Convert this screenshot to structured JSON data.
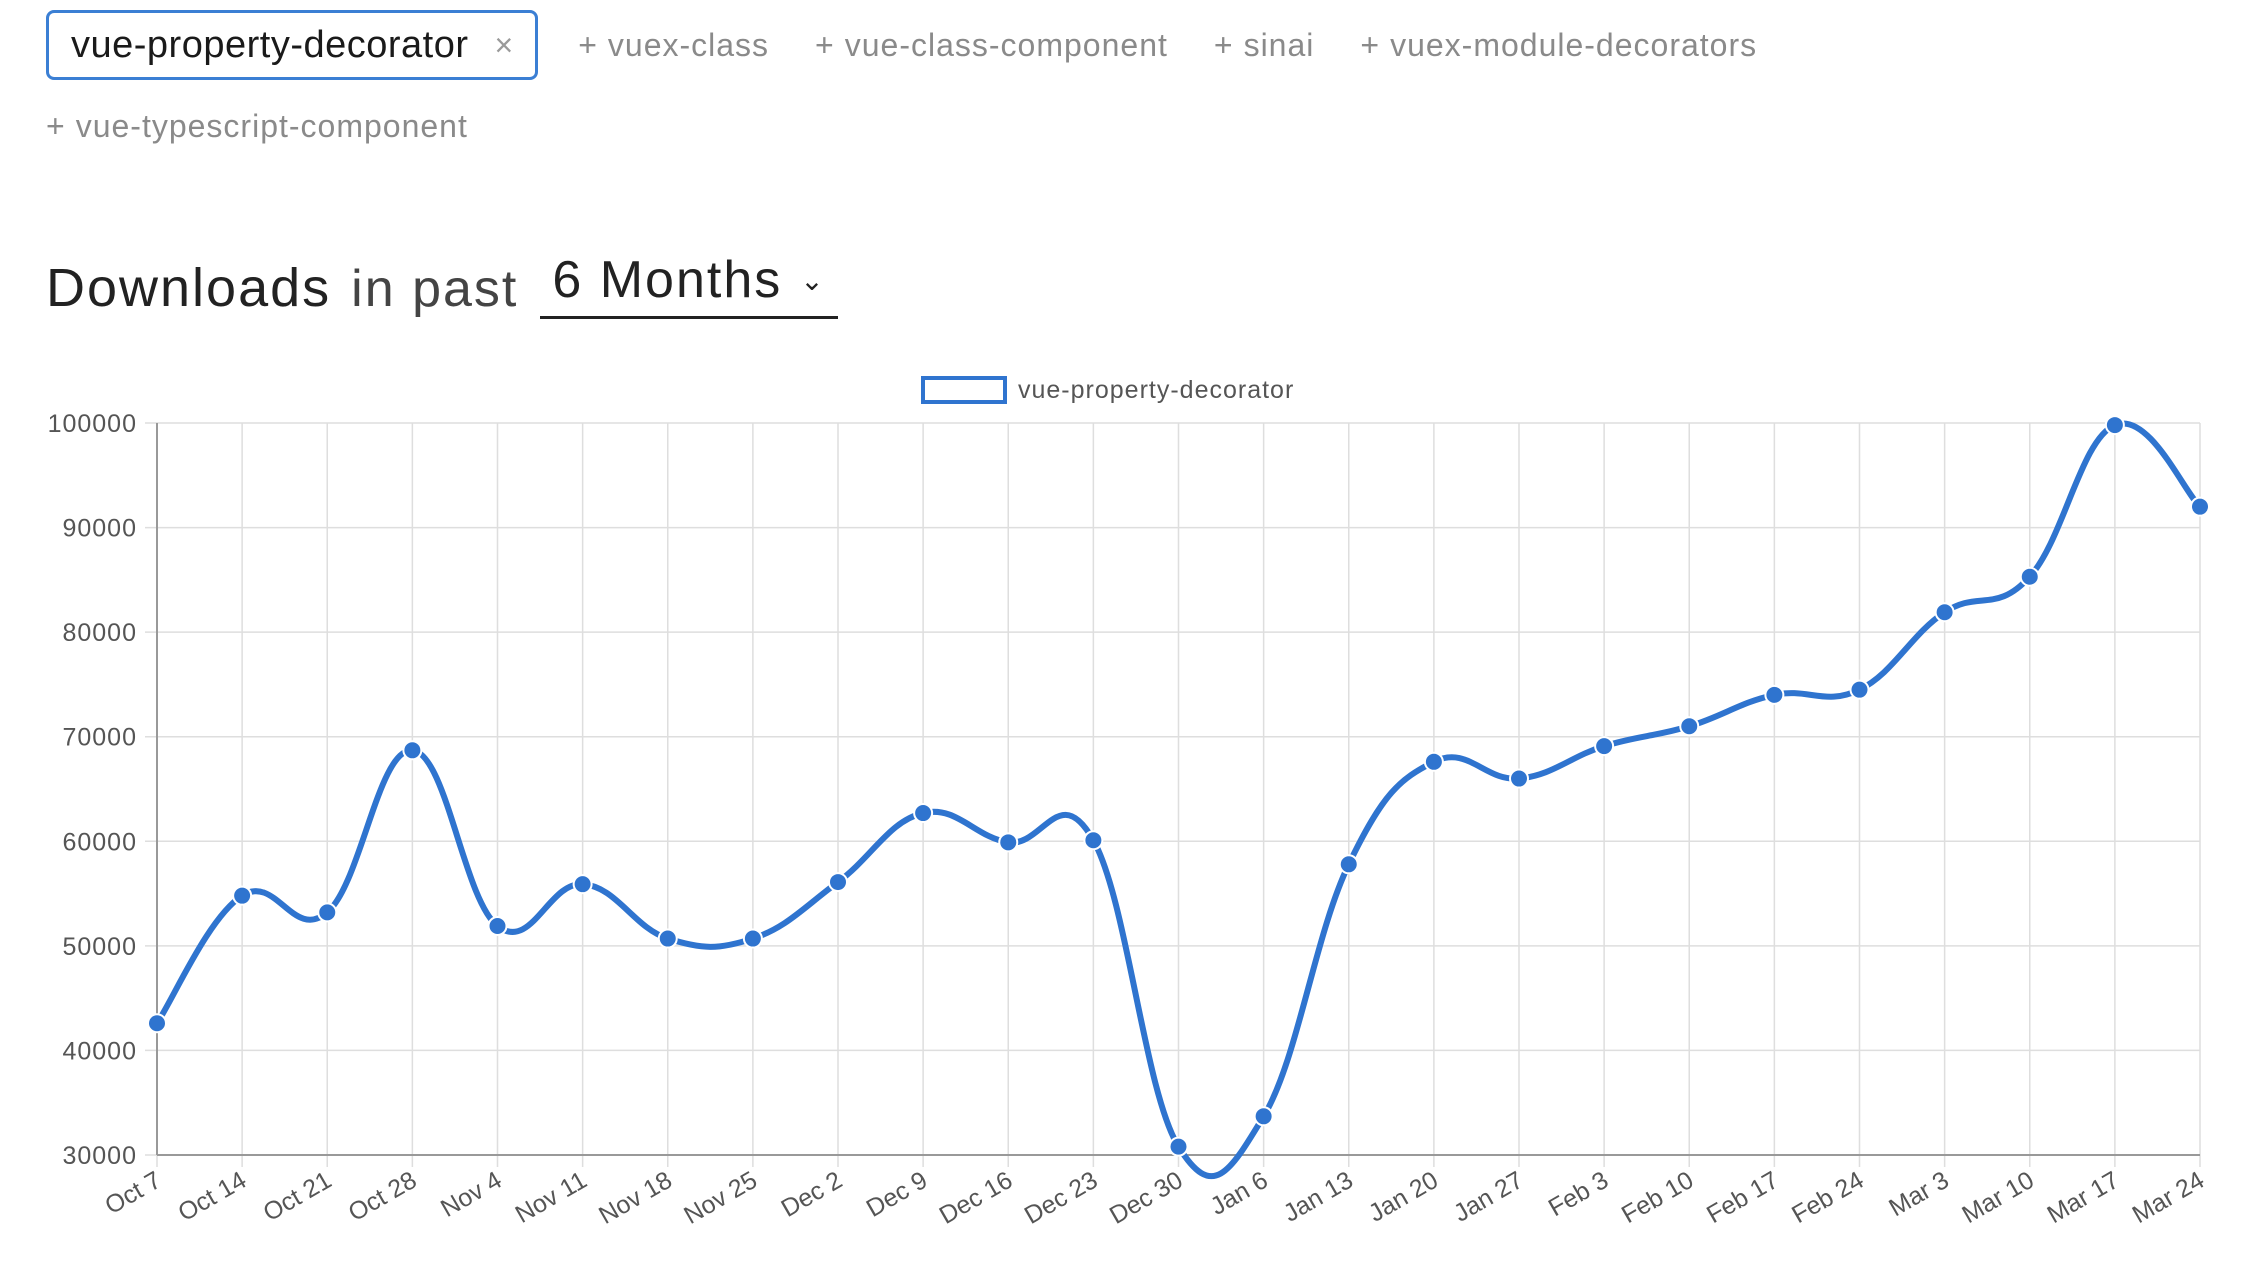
{
  "packages": {
    "active": {
      "name": "vue-property-decorator",
      "remove_icon": "×"
    },
    "suggestions": [
      "vuex-class",
      "vue-class-component",
      "sinai",
      "vuex-module-decorators",
      "vue-typescript-component"
    ],
    "add_icon": "+"
  },
  "heading": {
    "strong": "Downloads",
    "light": "in past",
    "period": "6 Months",
    "chevron_icon": "⌄"
  },
  "colors": {
    "accent": "#2f74cf",
    "grid": "#dedede",
    "axis": "#999999"
  },
  "chart_data": {
    "type": "line",
    "legend": "top-center",
    "grid": true,
    "categories": [
      "Oct 7",
      "Oct 14",
      "Oct 21",
      "Oct 28",
      "Nov 4",
      "Nov 11",
      "Nov 18",
      "Nov 25",
      "Dec 2",
      "Dec 9",
      "Dec 16",
      "Dec 23",
      "Dec 30",
      "Jan 6",
      "Jan 13",
      "Jan 20",
      "Jan 27",
      "Feb 3",
      "Feb 10",
      "Feb 17",
      "Feb 24",
      "Mar 3",
      "Mar 10",
      "Mar 17",
      "Mar 24"
    ],
    "series": [
      {
        "name": "vue-property-decorator",
        "color": "#2f74cf",
        "values": [
          42600,
          54800,
          53200,
          68700,
          51900,
          55900,
          50700,
          50700,
          56100,
          62700,
          59900,
          60100,
          30800,
          33700,
          57800,
          67600,
          66000,
          69100,
          71000,
          74000,
          74500,
          81900,
          85300,
          99800,
          92000
        ]
      }
    ],
    "ylim": [
      30000,
      100000
    ],
    "yticks": [
      30000,
      40000,
      50000,
      60000,
      70000,
      80000,
      90000,
      100000
    ]
  }
}
